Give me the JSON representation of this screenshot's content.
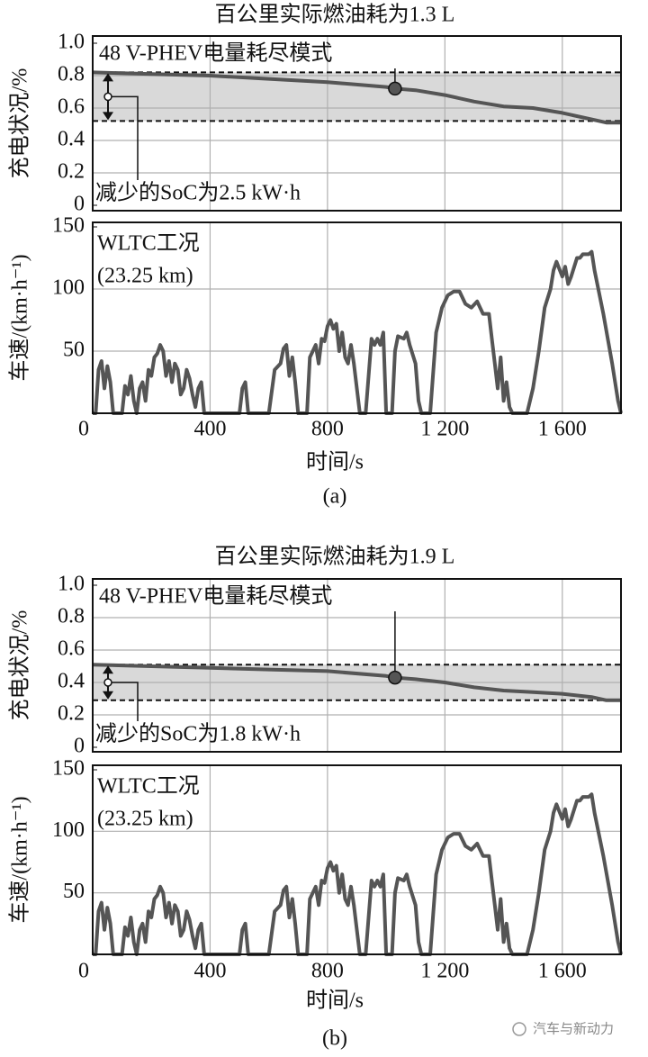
{
  "chart_data": [
    {
      "type": "line",
      "title": "百公里实际燃油耗为1.3 L",
      "ylabel": "充电状况/%",
      "mode_label": "48 V-PHEV电量耗尽模式",
      "soc_label": "减少的SoC为2.5 kW·h",
      "x": [
        0,
        200,
        400,
        600,
        800,
        1000,
        1030,
        1100,
        1200,
        1300,
        1400,
        1500,
        1600,
        1700,
        1750,
        1800
      ],
      "values": [
        0.82,
        0.81,
        0.8,
        0.78,
        0.76,
        0.73,
        0.72,
        0.71,
        0.68,
        0.64,
        0.61,
        0.6,
        0.57,
        0.53,
        0.51,
        0.51
      ],
      "color": "#555555",
      "ref_lines": [
        0.82,
        0.52
      ],
      "marker": {
        "x": 1030,
        "y": 0.72
      },
      "xlim": [
        0,
        1800
      ],
      "xticks": [
        0,
        400,
        800,
        1200,
        1600
      ],
      "ylim": [
        0,
        1
      ],
      "yticks": [
        0,
        0.2,
        0.4,
        0.6,
        0.8,
        {
          "value": 1,
          "label": "1.0"
        }
      ],
      "grid": true
    },
    {
      "type": "line",
      "ylabel": "车速/(km·h⁻¹)",
      "xlabel": "时间/s",
      "caption": "(a)",
      "annotation": [
        "WLTC工况",
        "(23.25 km)"
      ],
      "x": [
        0,
        10,
        20,
        30,
        40,
        50,
        60,
        70,
        100,
        110,
        120,
        130,
        140,
        150,
        160,
        170,
        180,
        190,
        200,
        210,
        220,
        230,
        240,
        250,
        260,
        270,
        280,
        290,
        300,
        310,
        320,
        330,
        340,
        350,
        360,
        370,
        380,
        500,
        510,
        520,
        530,
        600,
        620,
        640,
        650,
        660,
        670,
        680,
        690,
        700,
        730,
        740,
        760,
        770,
        780,
        790,
        800,
        810,
        820,
        830,
        840,
        850,
        860,
        870,
        880,
        890,
        900,
        910,
        930,
        950,
        960,
        970,
        980,
        990,
        1000,
        1020,
        1030,
        1040,
        1060,
        1070,
        1080,
        1100,
        1110,
        1120,
        1150,
        1170,
        1190,
        1210,
        1230,
        1250,
        1270,
        1290,
        1310,
        1330,
        1350,
        1360,
        1370,
        1380,
        1390,
        1400,
        1410,
        1420,
        1430,
        1480,
        1500,
        1520,
        1540,
        1560,
        1570,
        1580,
        1600,
        1610,
        1620,
        1630,
        1650,
        1660,
        1670,
        1690,
        1700,
        1710,
        1740,
        1770,
        1790,
        1800
      ],
      "values": [
        0,
        0,
        35,
        42,
        20,
        38,
        25,
        0,
        0,
        22,
        15,
        30,
        10,
        0,
        20,
        25,
        10,
        35,
        30,
        45,
        48,
        55,
        50,
        30,
        42,
        25,
        40,
        35,
        15,
        20,
        35,
        28,
        15,
        5,
        20,
        25,
        0,
        0,
        20,
        25,
        0,
        0,
        35,
        40,
        52,
        55,
        30,
        45,
        25,
        0,
        0,
        45,
        55,
        40,
        60,
        58,
        70,
        75,
        68,
        72,
        50,
        65,
        45,
        40,
        55,
        40,
        20,
        0,
        0,
        60,
        55,
        60,
        55,
        65,
        0,
        0,
        50,
        62,
        60,
        65,
        55,
        40,
        10,
        0,
        0,
        65,
        85,
        95,
        98,
        98,
        88,
        85,
        90,
        80,
        80,
        60,
        40,
        20,
        45,
        10,
        25,
        5,
        0,
        0,
        20,
        50,
        85,
        100,
        115,
        122,
        110,
        118,
        104,
        110,
        125,
        125,
        128,
        128,
        130,
        115,
        80,
        40,
        10,
        0
      ],
      "color": "#555555",
      "xlim": [
        0,
        1800
      ],
      "xticks": [
        0,
        400,
        800,
        {
          "value": 1200,
          "label": "1 200"
        },
        {
          "value": 1600,
          "label": "1 600"
        }
      ],
      "ylim": [
        0,
        150
      ],
      "yticks": [
        50,
        100,
        150
      ],
      "grid": true
    },
    {
      "type": "line",
      "title": "百公里实际燃油耗为1.9 L",
      "ylabel": "充电状况/%",
      "mode_label": "48 V-PHEV电量耗尽模式",
      "soc_label": "减少的SoC为1.8 kW·h",
      "x": [
        0,
        200,
        400,
        600,
        800,
        1000,
        1030,
        1100,
        1200,
        1300,
        1400,
        1500,
        1600,
        1700,
        1750,
        1800
      ],
      "values": [
        0.51,
        0.5,
        0.49,
        0.48,
        0.47,
        0.44,
        0.43,
        0.42,
        0.4,
        0.37,
        0.35,
        0.34,
        0.33,
        0.31,
        0.29,
        0.29
      ],
      "color": "#555555",
      "ref_lines": [
        0.51,
        0.29
      ],
      "marker": {
        "x": 1030,
        "y": 0.43
      },
      "xlim": [
        0,
        1800
      ],
      "xticks": [
        0,
        400,
        800,
        1200,
        1600
      ],
      "ylim": [
        0,
        1
      ],
      "yticks": [
        0,
        0.2,
        0.4,
        0.6,
        0.8,
        {
          "value": 1,
          "label": "1.0"
        }
      ],
      "grid": true
    },
    {
      "type": "line",
      "ylabel": "车速/(km·h⁻¹)",
      "xlabel": "时间/s",
      "caption": "(b)",
      "annotation": [
        "WLTC工况",
        "(23.25 km)"
      ],
      "x": [
        0,
        10,
        20,
        30,
        40,
        50,
        60,
        70,
        100,
        110,
        120,
        130,
        140,
        150,
        160,
        170,
        180,
        190,
        200,
        210,
        220,
        230,
        240,
        250,
        260,
        270,
        280,
        290,
        300,
        310,
        320,
        330,
        340,
        350,
        360,
        370,
        380,
        500,
        510,
        520,
        530,
        600,
        620,
        640,
        650,
        660,
        670,
        680,
        690,
        700,
        730,
        740,
        760,
        770,
        780,
        790,
        800,
        810,
        820,
        830,
        840,
        850,
        860,
        870,
        880,
        890,
        900,
        910,
        930,
        950,
        960,
        970,
        980,
        990,
        1000,
        1020,
        1030,
        1040,
        1060,
        1070,
        1080,
        1100,
        1110,
        1120,
        1150,
        1170,
        1190,
        1210,
        1230,
        1250,
        1270,
        1290,
        1310,
        1330,
        1350,
        1360,
        1370,
        1380,
        1390,
        1400,
        1410,
        1420,
        1430,
        1480,
        1500,
        1520,
        1540,
        1560,
        1570,
        1580,
        1600,
        1610,
        1620,
        1630,
        1650,
        1660,
        1670,
        1690,
        1700,
        1710,
        1740,
        1770,
        1790,
        1800
      ],
      "values": [
        0,
        0,
        35,
        42,
        20,
        38,
        25,
        0,
        0,
        22,
        15,
        30,
        10,
        0,
        20,
        25,
        10,
        35,
        30,
        45,
        48,
        55,
        50,
        30,
        42,
        25,
        40,
        35,
        15,
        20,
        35,
        28,
        15,
        5,
        20,
        25,
        0,
        0,
        20,
        25,
        0,
        0,
        35,
        40,
        52,
        55,
        30,
        45,
        25,
        0,
        0,
        45,
        55,
        40,
        60,
        58,
        70,
        75,
        68,
        72,
        50,
        65,
        45,
        40,
        55,
        40,
        20,
        0,
        0,
        60,
        55,
        60,
        55,
        65,
        0,
        0,
        50,
        62,
        60,
        65,
        55,
        40,
        10,
        0,
        0,
        65,
        85,
        95,
        98,
        98,
        88,
        85,
        90,
        80,
        80,
        60,
        40,
        20,
        45,
        10,
        25,
        5,
        0,
        0,
        20,
        50,
        85,
        100,
        115,
        122,
        110,
        118,
        104,
        110,
        125,
        125,
        128,
        128,
        130,
        115,
        80,
        40,
        10,
        0
      ],
      "color": "#555555",
      "xlim": [
        0,
        1800
      ],
      "xticks": [
        0,
        400,
        800,
        {
          "value": 1200,
          "label": "1 200"
        },
        {
          "value": 1600,
          "label": "1 600"
        }
      ],
      "ylim": [
        0,
        150
      ],
      "yticks": [
        50,
        100,
        150
      ],
      "grid": true
    }
  ],
  "watermark": "汽车与新动力"
}
